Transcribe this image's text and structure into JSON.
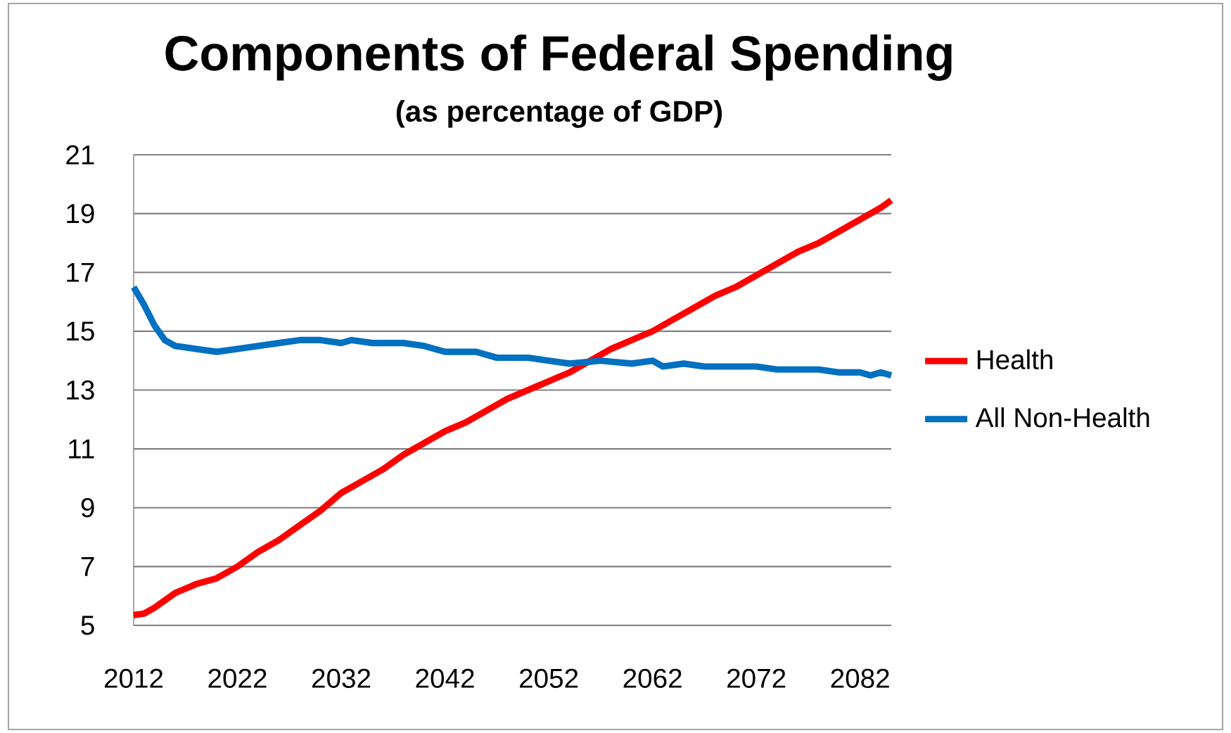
{
  "chart_data": {
    "type": "line",
    "title": "Components of Federal Spending",
    "subtitle": "(as percentage of GDP)",
    "xlim": [
      2012,
      2085
    ],
    "xticks": [
      2012,
      2022,
      2032,
      2042,
      2052,
      2062,
      2072,
      2082
    ],
    "ylim": [
      5,
      21
    ],
    "yticks": [
      5,
      7,
      9,
      11,
      13,
      15,
      17,
      19,
      21
    ],
    "grid": "y",
    "legend": "right",
    "line_style": "solid",
    "marker": "none",
    "series": [
      {
        "name": "Health",
        "color": "#ff0000",
        "x": [
          2012,
          2013,
          2014,
          2016,
          2018,
          2020,
          2022,
          2024,
          2026,
          2028,
          2030,
          2032,
          2034,
          2036,
          2038,
          2040,
          2042,
          2044,
          2046,
          2048,
          2050,
          2052,
          2054,
          2056,
          2058,
          2060,
          2062,
          2064,
          2066,
          2068,
          2070,
          2072,
          2074,
          2076,
          2078,
          2080,
          2082,
          2084,
          2085
        ],
        "values": [
          5.35,
          5.4,
          5.6,
          6.1,
          6.4,
          6.6,
          7.0,
          7.5,
          7.9,
          8.4,
          8.9,
          9.5,
          9.9,
          10.3,
          10.8,
          11.2,
          11.6,
          11.9,
          12.3,
          12.7,
          13.0,
          13.3,
          13.6,
          14.0,
          14.4,
          14.7,
          15.0,
          15.4,
          15.8,
          16.2,
          16.5,
          16.9,
          17.3,
          17.7,
          18.0,
          18.4,
          18.8,
          19.2,
          19.45
        ]
      },
      {
        "name": "All Non-Health",
        "color": "#0070c0",
        "x": [
          2012,
          2013,
          2014,
          2015,
          2016,
          2018,
          2020,
          2022,
          2024,
          2026,
          2028,
          2030,
          2032,
          2033,
          2035,
          2038,
          2040,
          2042,
          2045,
          2047,
          2050,
          2052,
          2054,
          2057,
          2060,
          2062,
          2063,
          2065,
          2067,
          2070,
          2072,
          2074,
          2078,
          2080,
          2082,
          2083,
          2084,
          2085
        ],
        "values": [
          16.5,
          15.9,
          15.2,
          14.7,
          14.5,
          14.4,
          14.3,
          14.4,
          14.5,
          14.6,
          14.7,
          14.7,
          14.6,
          14.7,
          14.6,
          14.6,
          14.5,
          14.3,
          14.3,
          14.1,
          14.1,
          14.0,
          13.9,
          14.0,
          13.9,
          14.0,
          13.8,
          13.9,
          13.8,
          13.8,
          13.8,
          13.7,
          13.7,
          13.6,
          13.6,
          13.5,
          13.6,
          13.5
        ]
      }
    ]
  }
}
